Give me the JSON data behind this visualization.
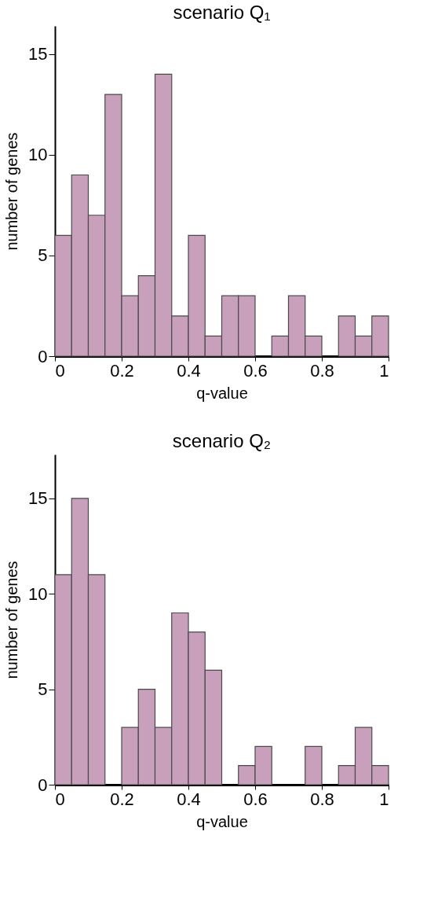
{
  "chart_data": [
    {
      "type": "histogram",
      "title": "scenario Q₁",
      "xlabel": "q-value",
      "ylabel": "number of genes",
      "bins": [
        0,
        0.05,
        0.1,
        0.15,
        0.2,
        0.25,
        0.3,
        0.35,
        0.4,
        0.45,
        0.5,
        0.55,
        0.6,
        0.65,
        0.7,
        0.75,
        0.8,
        0.85,
        0.9,
        0.95,
        1
      ],
      "values": [
        6,
        9,
        7,
        13,
        3,
        4,
        14,
        2,
        6,
        1,
        3,
        3,
        0,
        1,
        3,
        1,
        0,
        2,
        1,
        2
      ],
      "color": "#c9a0bb",
      "xlim": [
        0,
        1
      ],
      "xticks": [
        0,
        0.2,
        0.4,
        0.6,
        0.8,
        1
      ],
      "ylim": [
        0,
        16.4
      ],
      "yticks": [
        0,
        5,
        10,
        15
      ],
      "grid": false
    },
    {
      "type": "histogram",
      "title": "scenario Q₂",
      "xlabel": "q-value",
      "ylabel": "number of genes",
      "bins": [
        0,
        0.05,
        0.1,
        0.15,
        0.2,
        0.25,
        0.3,
        0.35,
        0.4,
        0.45,
        0.5,
        0.55,
        0.6,
        0.65,
        0.7,
        0.75,
        0.8,
        0.85,
        0.9,
        0.95,
        1
      ],
      "values": [
        11,
        15,
        11,
        0,
        3,
        5,
        3,
        9,
        8,
        6,
        0,
        1,
        2,
        0,
        0,
        2,
        0,
        1,
        3,
        1
      ],
      "color": "#c9a0bb",
      "xlim": [
        0,
        1
      ],
      "xticks": [
        0,
        0.2,
        0.4,
        0.6,
        0.8,
        1
      ],
      "ylim": [
        0,
        17.3
      ],
      "yticks": [
        0,
        5,
        10,
        15
      ],
      "grid": false
    }
  ]
}
